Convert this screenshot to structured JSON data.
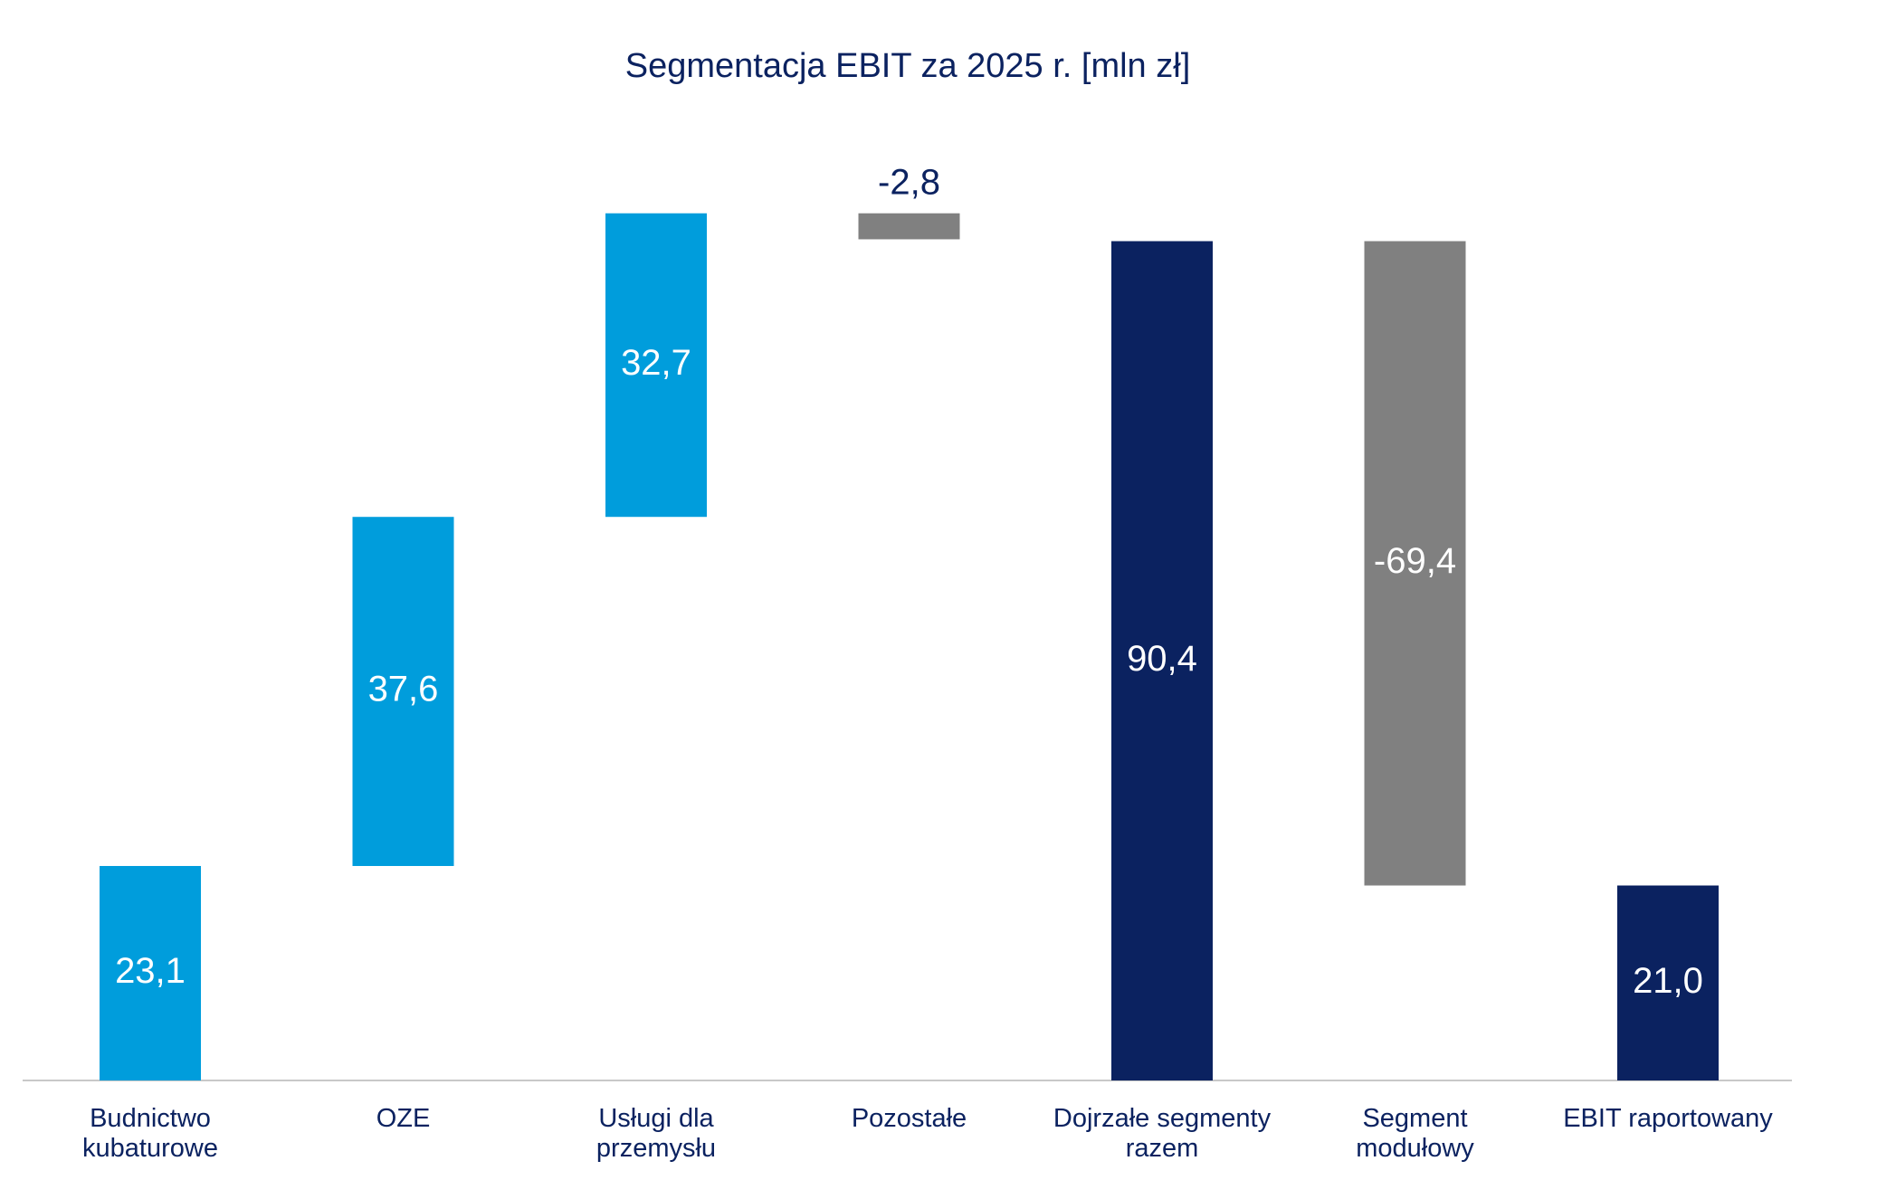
{
  "chart_data": {
    "type": "waterfall",
    "title": "Segmentacja EBIT za 2025 r. [mln zł]",
    "xlabel": "",
    "ylabel": "",
    "ylim": [
      0,
      95
    ],
    "grid": false,
    "categories": [
      [
        "Budnictwo",
        "kubaturowe"
      ],
      [
        "OZE"
      ],
      [
        "Usługi dla",
        "przemysłu"
      ],
      [
        "Pozostałe"
      ],
      [
        "Dojrzałe segmenty",
        "razem"
      ],
      [
        "Segment",
        "modułowy"
      ],
      [
        "EBIT raportowany"
      ]
    ],
    "values": [
      23.1,
      37.6,
      32.7,
      -2.8,
      90.4,
      -69.4,
      21.0
    ],
    "labels": [
      "23,1",
      "37,6",
      "32,7",
      "-2,8",
      "90,4",
      "-69,4",
      "21,0"
    ],
    "bar_kinds": [
      "increase",
      "increase",
      "increase",
      "decrease",
      "total",
      "decrease",
      "total"
    ]
  },
  "colors": {
    "increase": "#009ddc",
    "decrease": "#808080",
    "total": "#0b2260",
    "title": "#0b2260",
    "label_inside": "#ffffff",
    "label_outside": "#0b2260",
    "axis": "#c8c8c8"
  }
}
